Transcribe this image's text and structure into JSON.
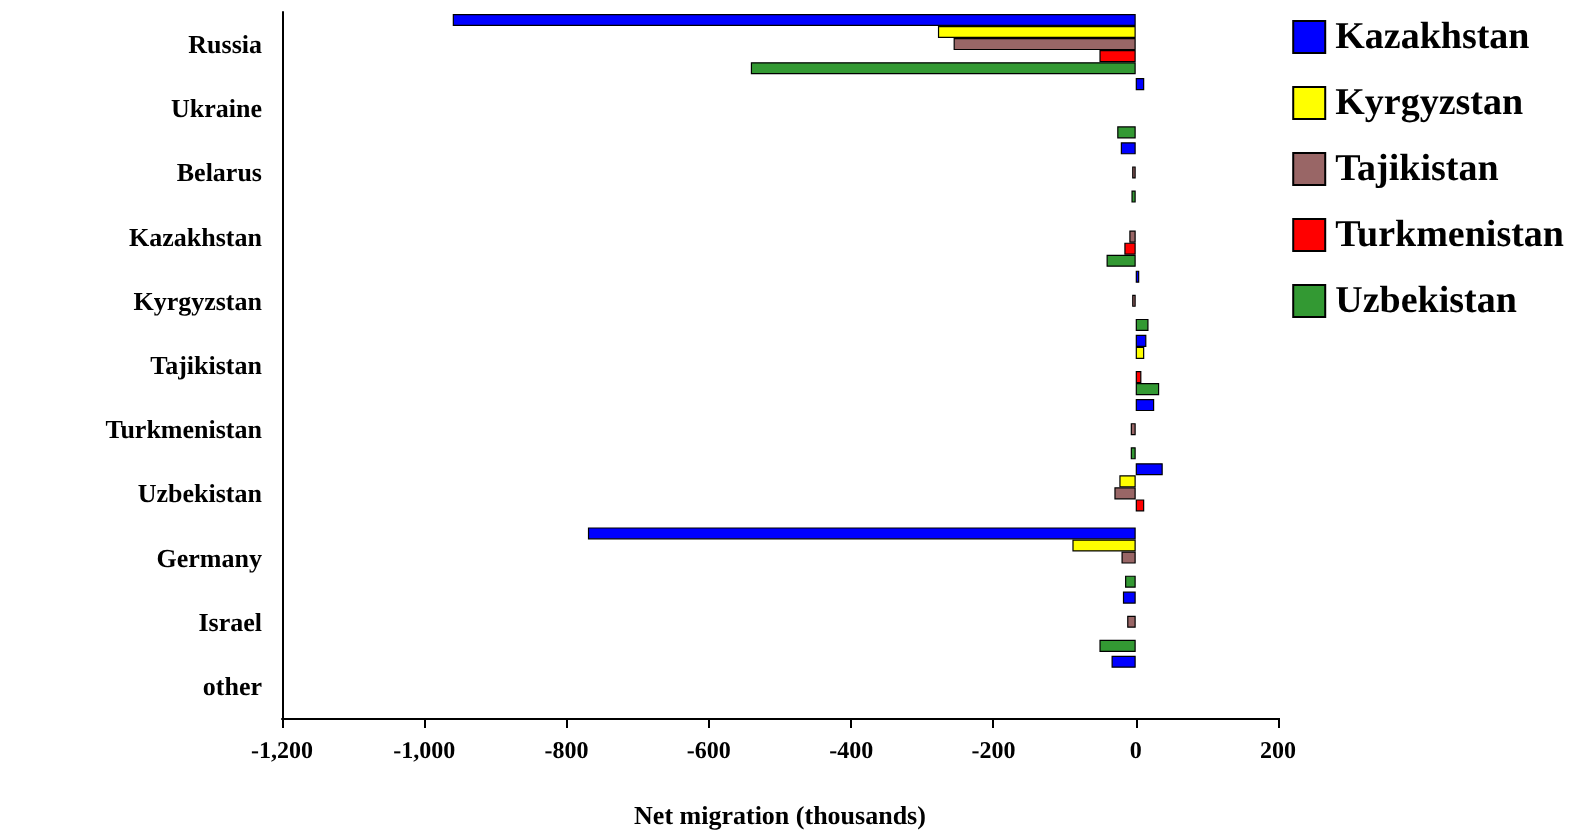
{
  "chart_data": {
    "type": "bar",
    "orientation": "horizontal",
    "xlabel": "Net migration (thousands)",
    "categories": [
      "Russia",
      "Ukraine",
      "Belarus",
      "Kazakhstan",
      "Kyrgyzstan",
      "Tajikistan",
      "Turkmenistan",
      "Uzbekistan",
      "Germany",
      "Israel",
      "other"
    ],
    "series": [
      {
        "name": "Kazakhstan",
        "color": "#0000ff",
        "values": [
          -960,
          12,
          -21,
          null,
          5,
          15,
          26,
          38,
          -770,
          -18,
          -34
        ]
      },
      {
        "name": "Kyrgyzstan",
        "color": "#ffff00",
        "values": [
          -278,
          null,
          null,
          null,
          null,
          12,
          null,
          -23,
          -89,
          null,
          null
        ]
      },
      {
        "name": "Tajikistan",
        "color": "#996666",
        "values": [
          -256,
          null,
          -5,
          -9,
          -5,
          null,
          -7,
          -30,
          -20,
          -12,
          null
        ]
      },
      {
        "name": "Turkmenistan",
        "color": "#ff0000",
        "values": [
          -51,
          null,
          null,
          -16,
          null,
          8,
          null,
          12,
          null,
          null,
          null
        ]
      },
      {
        "name": "Uzbekistan",
        "color": "#339933",
        "values": [
          -541,
          -26,
          -6,
          -41,
          18,
          33,
          -7,
          null,
          -15,
          -51,
          null
        ]
      }
    ],
    "xlim": [
      -1200,
      200
    ],
    "xticks": [
      {
        "value": -1200,
        "label": "-1,200"
      },
      {
        "value": -1000,
        "label": "-1,000"
      },
      -800,
      -600,
      -400,
      -200,
      0,
      200
    ],
    "legend": "top right",
    "grid": false
  }
}
